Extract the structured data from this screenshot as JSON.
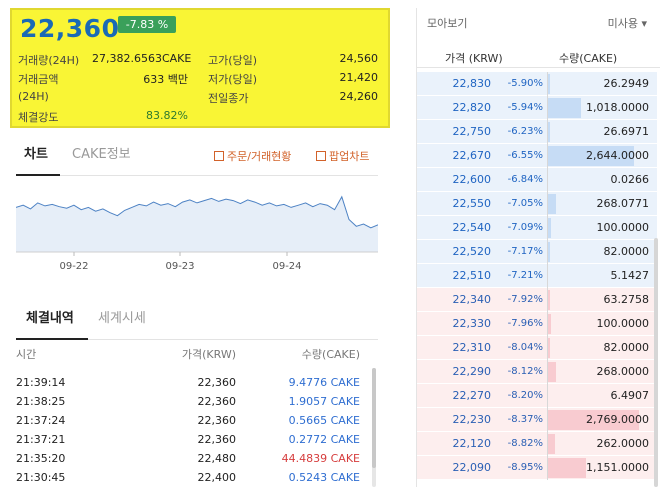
{
  "summary": {
    "price": "22,360",
    "change": "-7.83 %",
    "rows": [
      {
        "label": "거래량(24H)",
        "value": "27,382.6563CAKE"
      },
      {
        "label": "거래금액",
        "value": "633 백만"
      },
      {
        "label": "(24H)",
        "value": ""
      },
      {
        "label": "체결강도",
        "value": "83.82%"
      }
    ],
    "right_rows": [
      {
        "label": "고가(당일)",
        "value": "24,560"
      },
      {
        "label": "저가(당일)",
        "value": "21,420"
      },
      {
        "label": "전일종가",
        "value": "24,260"
      }
    ]
  },
  "chart_tabs": {
    "chart": "차트",
    "info": "CAKE정보",
    "orders_link": "주문/거래현황",
    "popup_link": "팝업차트"
  },
  "chart_data": {
    "type": "area",
    "title": "",
    "xlabel": "",
    "ylabel": "",
    "x_ticks": [
      "09-22",
      "09-23",
      "09-24"
    ],
    "values": [
      24.9,
      25.2,
      24.7,
      25.5,
      25.1,
      25.3,
      25.0,
      24.8,
      25.2,
      24.6,
      24.9,
      24.4,
      24.7,
      24.2,
      23.8,
      24.5,
      24.9,
      25.3,
      25.1,
      25.6,
      25.2,
      25.4,
      25.0,
      25.6,
      25.9,
      25.5,
      25.8,
      26.1,
      25.7,
      26.0,
      25.8,
      25.4,
      25.9,
      25.6,
      25.2,
      25.5,
      25.1,
      25.3,
      24.9,
      25.2,
      25.5,
      25.0,
      25.4,
      25.2,
      24.6,
      26.3,
      23.3,
      22.4,
      22.7,
      22.2,
      22.6
    ],
    "ylim": [
      19,
      28
    ],
    "grid": false
  },
  "trade_tabs": {
    "history": "체결내역",
    "world": "세계시세"
  },
  "trade_header": {
    "time": "시간",
    "price": "가격(KRW)",
    "qty": "수량(CAKE)"
  },
  "trades": [
    {
      "time": "21:39:14",
      "price": "22,360",
      "qty": "9.4776 CAKE",
      "side": "buy"
    },
    {
      "time": "21:38:25",
      "price": "22,360",
      "qty": "1.9057 CAKE",
      "side": "buy"
    },
    {
      "time": "21:37:24",
      "price": "22,360",
      "qty": "0.5665 CAKE",
      "side": "buy"
    },
    {
      "time": "21:37:21",
      "price": "22,360",
      "qty": "0.2772 CAKE",
      "side": "buy"
    },
    {
      "time": "21:35:20",
      "price": "22,480",
      "qty": "44.4839 CAKE",
      "side": "sell"
    },
    {
      "time": "21:30:45",
      "price": "22,400",
      "qty": "0.5243 CAKE",
      "side": "buy"
    }
  ],
  "orderbook": {
    "title": "모아보기",
    "unit": "미사용 ▾",
    "head_price": "가격 (KRW)",
    "head_qty": "수량(CAKE)",
    "asks": [
      {
        "price": "22,830",
        "pct": "-5.90%",
        "qty": "26.2949",
        "fill": 0.01
      },
      {
        "price": "22,820",
        "pct": "-5.94%",
        "qty": "1,018.0000",
        "fill": 0.37
      },
      {
        "price": "22,750",
        "pct": "-6.23%",
        "qty": "26.6971",
        "fill": 0.01
      },
      {
        "price": "22,670",
        "pct": "-6.55%",
        "qty": "2,644.0000",
        "fill": 0.95
      },
      {
        "price": "22,600",
        "pct": "-6.84%",
        "qty": "0.0266",
        "fill": 0.0
      },
      {
        "price": "22,550",
        "pct": "-7.05%",
        "qty": "268.0771",
        "fill": 0.1
      },
      {
        "price": "22,540",
        "pct": "-7.09%",
        "qty": "100.0000",
        "fill": 0.04
      },
      {
        "price": "22,520",
        "pct": "-7.17%",
        "qty": "82.0000",
        "fill": 0.03
      },
      {
        "price": "22,510",
        "pct": "-7.21%",
        "qty": "5.1427",
        "fill": 0.0
      }
    ],
    "bids": [
      {
        "price": "22,340",
        "pct": "-7.92%",
        "qty": "63.2758",
        "fill": 0.02
      },
      {
        "price": "22,330",
        "pct": "-7.96%",
        "qty": "100.0000",
        "fill": 0.04
      },
      {
        "price": "22,310",
        "pct": "-8.04%",
        "qty": "82.0000",
        "fill": 0.03
      },
      {
        "price": "22,290",
        "pct": "-8.12%",
        "qty": "268.0000",
        "fill": 0.1
      },
      {
        "price": "22,270",
        "pct": "-8.20%",
        "qty": "6.4907",
        "fill": 0.0
      },
      {
        "price": "22,230",
        "pct": "-8.37%",
        "qty": "2,769.0000",
        "fill": 1.0
      },
      {
        "price": "22,120",
        "pct": "-8.82%",
        "qty": "262.0000",
        "fill": 0.09
      },
      {
        "price": "22,090",
        "pct": "-8.95%",
        "qty": "1,151.0000",
        "fill": 0.42
      }
    ]
  }
}
